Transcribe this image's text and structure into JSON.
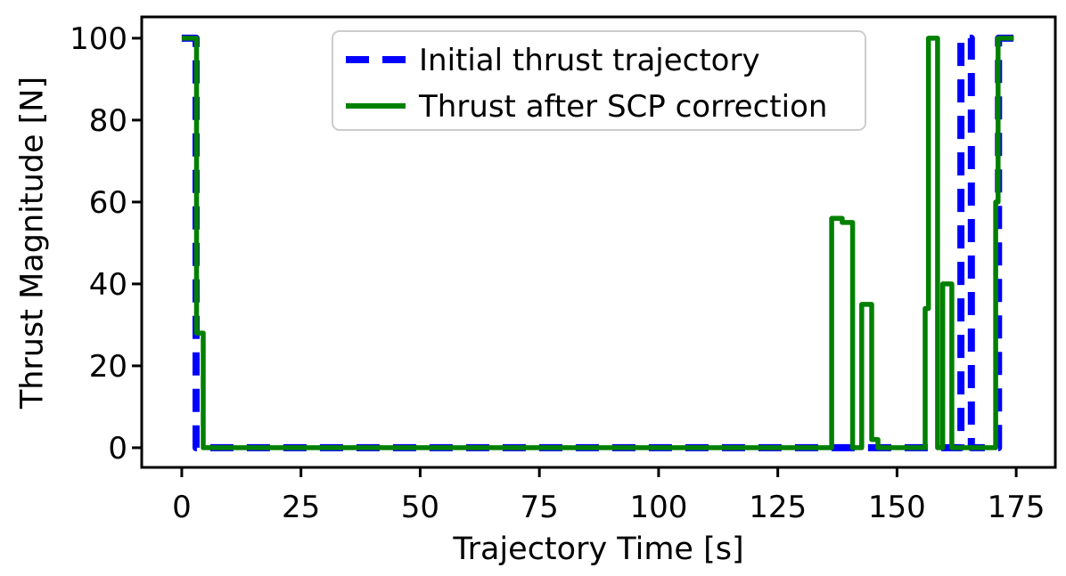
{
  "figure": {
    "background": "#ffffff",
    "text_color": "#000000",
    "spine_color": "#000000"
  },
  "chart_data": {
    "type": "line",
    "title": "",
    "xlabel": "Trajectory Time [s]",
    "ylabel": "Thrust Magnitude [N]",
    "xlim": [
      -8.4,
      183.2
    ],
    "ylim": [
      -4.8,
      105.2
    ],
    "xticks": [
      0,
      25,
      50,
      75,
      100,
      125,
      150,
      175
    ],
    "yticks": [
      0,
      20,
      40,
      60,
      80,
      100
    ],
    "grid": false,
    "legend": {
      "position": "upper center",
      "frame_color": "#cccccc",
      "entries": [
        {
          "label": "Initial thrust trajectory",
          "color": "#0000ff",
          "dash": true
        },
        {
          "label": "Thrust after SCP correction",
          "color": "#008000",
          "dash": false
        }
      ]
    },
    "series": [
      {
        "name": "Initial thrust trajectory",
        "color": "#0000ff",
        "style": "dashed",
        "linewidth": 8,
        "points": [
          [
            0,
            100
          ],
          [
            3,
            100
          ],
          [
            3,
            0
          ],
          [
            163.4,
            0
          ],
          [
            163.4,
            100
          ],
          [
            165.6,
            100
          ],
          [
            165.6,
            0
          ],
          [
            171.3,
            0
          ],
          [
            171.3,
            100
          ],
          [
            174.5,
            100
          ]
        ]
      },
      {
        "name": "Thrust after SCP correction",
        "color": "#008000",
        "style": "solid",
        "linewidth": 5.5,
        "points": [
          [
            0,
            100
          ],
          [
            3.1,
            100
          ],
          [
            3.1,
            28
          ],
          [
            4.5,
            28
          ],
          [
            4.5,
            0
          ],
          [
            136.3,
            0
          ],
          [
            136.3,
            56
          ],
          [
            138.5,
            56
          ],
          [
            138.5,
            55
          ],
          [
            140.7,
            55
          ],
          [
            140.7,
            0
          ],
          [
            142.6,
            0
          ],
          [
            142.6,
            35
          ],
          [
            144.7,
            35
          ],
          [
            144.7,
            2
          ],
          [
            146,
            2
          ],
          [
            146,
            0
          ],
          [
            155.9,
            0
          ],
          [
            155.9,
            34
          ],
          [
            156.6,
            34
          ],
          [
            156.6,
            100
          ],
          [
            158.5,
            100
          ],
          [
            158.5,
            0
          ],
          [
            159.6,
            0
          ],
          [
            159.6,
            40
          ],
          [
            161.5,
            40
          ],
          [
            161.5,
            0
          ],
          [
            170.7,
            0
          ],
          [
            170.7,
            60
          ],
          [
            171.2,
            60
          ],
          [
            171.2,
            100
          ],
          [
            174.5,
            100
          ]
        ]
      }
    ]
  }
}
